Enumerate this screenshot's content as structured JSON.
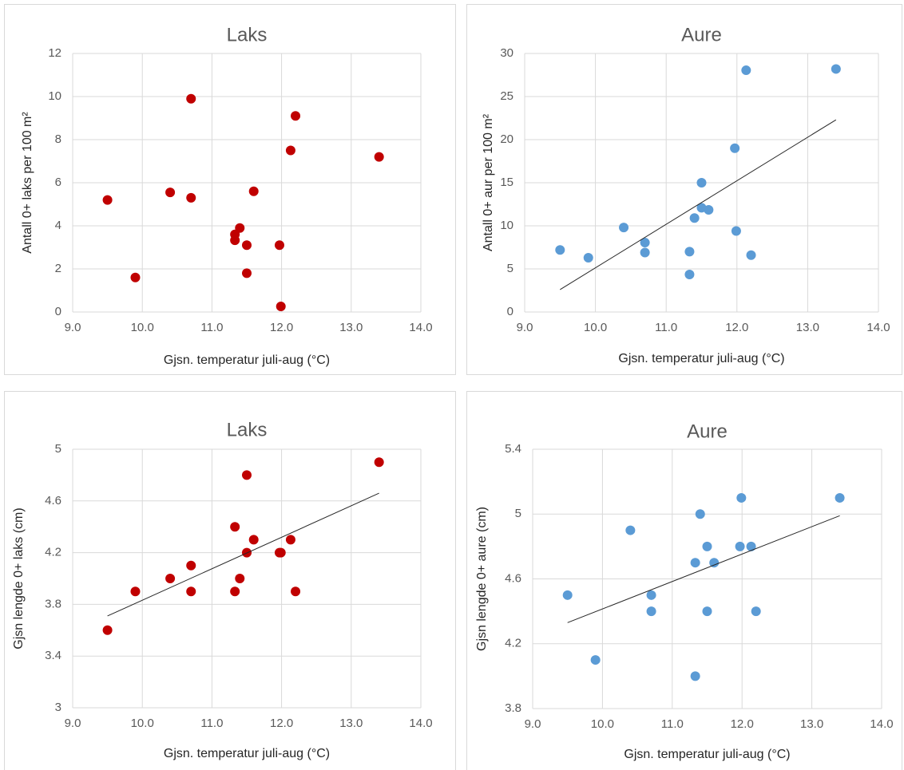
{
  "chart_data": [
    {
      "type": "scatter",
      "title": "Laks",
      "xlabel": "Gjsn. temperatur juli-aug (°C)",
      "ylabel": "Antall 0+ laks per 100 m²",
      "color": "#c00000",
      "x": [
        9.5,
        9.9,
        10.4,
        10.7,
        10.7,
        11.33,
        11.33,
        11.4,
        11.5,
        11.5,
        11.6,
        11.97,
        11.99,
        12.13,
        12.2,
        13.4
      ],
      "values": [
        5.2,
        1.6,
        5.55,
        9.9,
        5.3,
        3.6,
        3.33,
        3.9,
        3.1,
        1.8,
        5.6,
        3.1,
        0.26,
        7.5,
        9.1,
        7.2
      ],
      "xlim": [
        9,
        14
      ],
      "ylim": [
        0,
        12
      ],
      "xticks": [
        {
          "value": 9,
          "label": "9.0"
        },
        {
          "value": 10,
          "label": "10.0"
        },
        {
          "value": 11,
          "label": "11.0"
        },
        {
          "value": 12,
          "label": "12.0"
        },
        {
          "value": 13,
          "label": "13.0"
        },
        {
          "value": 14,
          "label": "14.0"
        }
      ],
      "yticks": [
        0,
        2,
        4,
        6,
        8,
        10,
        12
      ],
      "grid": true
    },
    {
      "type": "scatter",
      "title": "Aure",
      "xlabel": "Gjsn. temperatur juli-aug (°C)",
      "ylabel": "Antall 0+ aur per 100 m²",
      "color": "#5b9bd5",
      "x": [
        9.5,
        9.9,
        10.4,
        10.7,
        10.7,
        11.33,
        11.33,
        11.4,
        11.5,
        11.5,
        11.6,
        11.97,
        11.99,
        12.13,
        12.2,
        13.4
      ],
      "values": [
        7.2,
        6.3,
        9.8,
        8.05,
        6.9,
        7.0,
        4.35,
        10.9,
        15.0,
        12.1,
        11.85,
        19.0,
        9.4,
        28.05,
        6.6,
        28.2
      ],
      "xlim": [
        9,
        14
      ],
      "ylim": [
        0,
        30
      ],
      "xticks": [
        {
          "value": 9,
          "label": "9.0"
        },
        {
          "value": 10,
          "label": "10.0"
        },
        {
          "value": 11,
          "label": "11.0"
        },
        {
          "value": 12,
          "label": "12.0"
        },
        {
          "value": 13,
          "label": "13.0"
        },
        {
          "value": 14,
          "label": "14.0"
        }
      ],
      "yticks": [
        0,
        5,
        10,
        15,
        20,
        25,
        30
      ],
      "grid": true,
      "trendline": {
        "x": [
          9.5,
          13.4
        ],
        "y": [
          2.6,
          22.3
        ]
      }
    },
    {
      "type": "scatter",
      "title": "Laks",
      "xlabel": "Gjsn. temperatur juli-aug (°C)",
      "ylabel": "Gjsn lengde 0+ laks (cm)",
      "color": "#c00000",
      "x": [
        9.5,
        9.9,
        10.4,
        10.7,
        10.7,
        11.33,
        11.33,
        11.4,
        11.5,
        11.5,
        11.6,
        11.97,
        11.99,
        12.13,
        12.2,
        13.4
      ],
      "values": [
        3.6,
        3.9,
        4.0,
        4.1,
        3.9,
        4.4,
        3.9,
        4.0,
        4.8,
        4.2,
        4.3,
        4.2,
        4.2,
        4.3,
        3.9,
        4.9
      ],
      "xlim": [
        9,
        14
      ],
      "ylim": [
        3,
        5
      ],
      "xticks": [
        {
          "value": 9,
          "label": "9.0"
        },
        {
          "value": 10,
          "label": "10.0"
        },
        {
          "value": 11,
          "label": "11.0"
        },
        {
          "value": 12,
          "label": "12.0"
        },
        {
          "value": 13,
          "label": "13.0"
        },
        {
          "value": 14,
          "label": "14.0"
        }
      ],
      "yticks": [
        3,
        3.4,
        3.8,
        4.2,
        4.6,
        5
      ],
      "grid": true,
      "trendline": {
        "x": [
          9.5,
          13.4
        ],
        "y": [
          3.71,
          4.66
        ]
      }
    },
    {
      "type": "scatter",
      "title": "Aure",
      "xlabel": "Gjsn. temperatur juli-aug (°C)",
      "ylabel": "Gjsn lengde 0+ aure (cm)",
      "color": "#5b9bd5",
      "x": [
        9.5,
        9.9,
        10.4,
        10.7,
        10.7,
        11.33,
        11.33,
        11.4,
        11.5,
        11.5,
        11.6,
        11.97,
        11.99,
        12.13,
        12.2,
        13.4
      ],
      "values": [
        4.5,
        4.1,
        4.9,
        4.5,
        4.4,
        4.7,
        4.0,
        5.0,
        4.8,
        4.4,
        4.7,
        4.8,
        5.1,
        4.8,
        4.4,
        5.1
      ],
      "xlim": [
        9,
        14
      ],
      "ylim": [
        3.8,
        5.4
      ],
      "xticks": [
        {
          "value": 9,
          "label": "9.0"
        },
        {
          "value": 10,
          "label": "10.0"
        },
        {
          "value": 11,
          "label": "11.0"
        },
        {
          "value": 12,
          "label": "12.0"
        },
        {
          "value": 13,
          "label": "13.0"
        },
        {
          "value": 14,
          "label": "14.0"
        }
      ],
      "yticks": [
        3.8,
        4.2,
        4.6,
        5,
        5.4
      ],
      "grid": true,
      "trendline": {
        "x": [
          9.5,
          13.4
        ],
        "y": [
          4.33,
          4.99
        ]
      }
    }
  ]
}
